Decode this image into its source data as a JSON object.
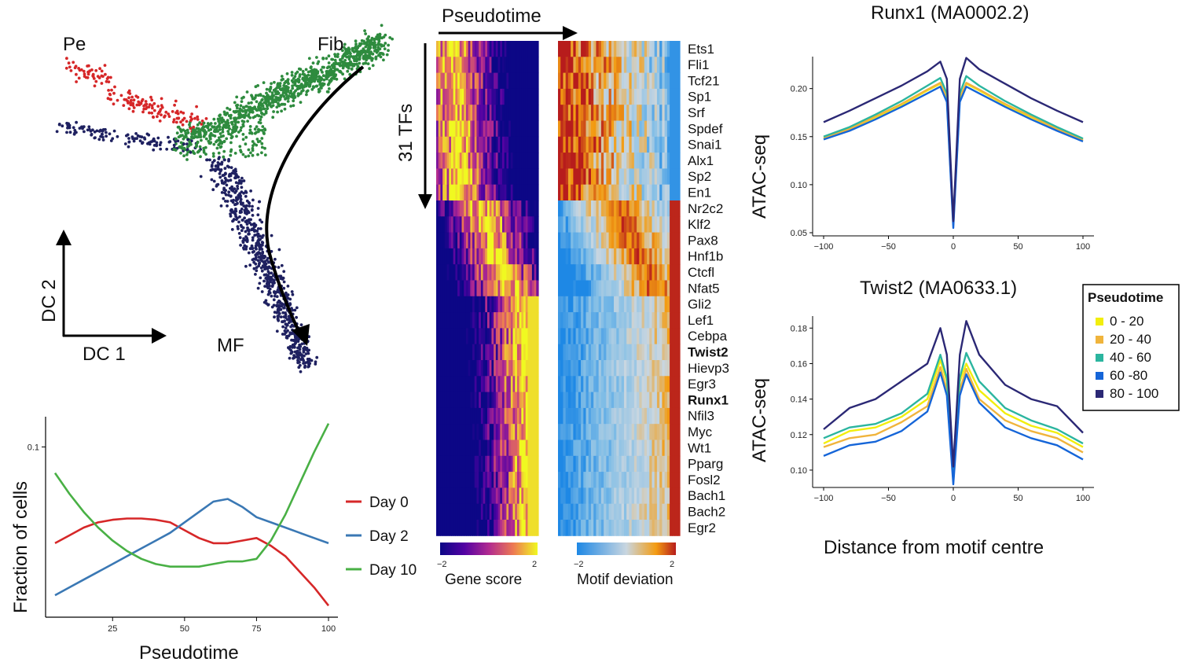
{
  "scatter_panel": {
    "labels": {
      "pe": "Pe",
      "fib": "Fib",
      "mf": "MF",
      "dc1": "DC 1",
      "dc2": "DC 2"
    },
    "colors": {
      "pe": "#d62728",
      "fib": "#2e8b3e",
      "mf": "#1f2160",
      "arrow": "#000000"
    }
  },
  "density_panel": {
    "xlabel": "Pseudotime",
    "ylabel": "Fraction of cells",
    "ytick": "0.1",
    "xticks": [
      25,
      50,
      75,
      100
    ],
    "legend": [
      "Day 0",
      "Day 2",
      "Day 10"
    ],
    "colors": [
      "#d62728",
      "#3a78b4",
      "#49b045"
    ]
  },
  "heatmap_panel": {
    "pseudotime_label": "Pseudotime",
    "tfs_label": "31 TFs",
    "tfs": [
      "Ets1",
      "Fli1",
      "Tcf21",
      "Sp1",
      "Srf",
      "Spdef",
      "Snai1",
      "Alx1",
      "Sp2",
      "En1",
      "Nr2c2",
      "Klf2",
      "Pax8",
      "Hnf1b",
      "Ctcfl",
      "Nfat5",
      "Gli2",
      "Lef1",
      "Cebpa",
      "Twist2",
      "Hievp3",
      "Egr3",
      "Runx1",
      "Nfil3",
      "Myc",
      "Wt1",
      "Pparg",
      "Fosl2",
      "Bach1",
      "Bach2",
      "Egr2"
    ],
    "bold_tfs": [
      "Twist2",
      "Runx1"
    ],
    "gene_score_label": "Gene score",
    "motif_deviation_label": "Motif deviation",
    "scale_min": "−2",
    "scale_max": "2"
  },
  "chart_data": [
    {
      "type": "scatter",
      "xlabel": "DC 1",
      "ylabel": "DC 2",
      "series": [
        {
          "name": "Pe",
          "values": []
        },
        {
          "name": "Fib",
          "values": []
        },
        {
          "name": "MF",
          "values": []
        }
      ]
    },
    {
      "type": "line",
      "xlabel": "Pseudotime",
      "ylabel": "Fraction of cells",
      "xlim": [
        5,
        100
      ],
      "ylim": [
        0.04,
        0.108
      ],
      "x": [
        5,
        10,
        15,
        20,
        25,
        30,
        35,
        40,
        45,
        50,
        55,
        60,
        65,
        70,
        75,
        80,
        85,
        90,
        95,
        100
      ],
      "series": [
        {
          "name": "Day 0",
          "values": [
            0.063,
            0.066,
            0.069,
            0.071,
            0.072,
            0.0725,
            0.0725,
            0.072,
            0.071,
            0.068,
            0.065,
            0.063,
            0.063,
            0.064,
            0.065,
            0.062,
            0.058,
            0.052,
            0.046,
            0.039
          ]
        },
        {
          "name": "Day 2",
          "values": [
            0.043,
            0.046,
            0.049,
            0.052,
            0.055,
            0.058,
            0.061,
            0.064,
            0.067,
            0.071,
            0.075,
            0.079,
            0.08,
            0.077,
            0.073,
            0.071,
            0.069,
            0.067,
            0.065,
            0.063
          ]
        },
        {
          "name": "Day 10",
          "values": [
            0.09,
            0.082,
            0.075,
            0.069,
            0.064,
            0.06,
            0.057,
            0.055,
            0.054,
            0.054,
            0.054,
            0.055,
            0.056,
            0.056,
            0.057,
            0.064,
            0.074,
            0.086,
            0.098,
            0.109
          ]
        }
      ]
    },
    {
      "type": "heatmap",
      "title": "Gene score",
      "rows": 31,
      "scale": [
        -2,
        2
      ]
    },
    {
      "type": "heatmap",
      "title": "Motif deviation",
      "rows": 31,
      "scale": [
        -2,
        2
      ]
    },
    {
      "type": "line",
      "title": "Runx1 (MA0002.2)",
      "ylabel": "ATAC-seq",
      "xlim": [
        -100,
        100
      ],
      "ylim": [
        0.05,
        0.23
      ],
      "xticks": [
        -100,
        -50,
        0,
        50,
        100
      ],
      "yticks": [
        "0.05",
        "0.10",
        "0.15",
        "0.20"
      ],
      "x": [
        -100,
        -80,
        -60,
        -40,
        -20,
        -10,
        -5,
        0,
        5,
        10,
        20,
        40,
        60,
        80,
        100
      ],
      "series": [
        {
          "name": "0 - 20",
          "values": [
            0.148,
            0.158,
            0.17,
            0.183,
            0.198,
            0.205,
            0.19,
            0.06,
            0.19,
            0.205,
            0.198,
            0.183,
            0.17,
            0.158,
            0.146
          ]
        },
        {
          "name": "20 - 40",
          "values": [
            0.149,
            0.158,
            0.171,
            0.184,
            0.199,
            0.206,
            0.19,
            0.058,
            0.19,
            0.206,
            0.199,
            0.184,
            0.171,
            0.158,
            0.147
          ]
        },
        {
          "name": "40 - 60",
          "values": [
            0.15,
            0.16,
            0.173,
            0.187,
            0.203,
            0.211,
            0.195,
            0.062,
            0.195,
            0.213,
            0.203,
            0.187,
            0.173,
            0.16,
            0.148
          ]
        },
        {
          "name": "60 -80",
          "values": [
            0.147,
            0.156,
            0.168,
            0.181,
            0.195,
            0.202,
            0.186,
            0.055,
            0.186,
            0.202,
            0.195,
            0.181,
            0.168,
            0.156,
            0.145
          ]
        },
        {
          "name": "80 - 100",
          "values": [
            0.165,
            0.177,
            0.19,
            0.203,
            0.218,
            0.228,
            0.21,
            0.062,
            0.21,
            0.232,
            0.22,
            0.205,
            0.19,
            0.177,
            0.165
          ]
        }
      ]
    },
    {
      "type": "line",
      "title": "Twist2 (MA0633.1)",
      "ylabel": "ATAC-seq",
      "xlabel": "Distance from motif centre",
      "xlim": [
        -100,
        100
      ],
      "ylim": [
        0.092,
        0.185
      ],
      "xticks": [
        -100,
        -50,
        0,
        50,
        100
      ],
      "yticks": [
        "0.10",
        "0.12",
        "0.14",
        "0.16",
        "0.18"
      ],
      "x": [
        -100,
        -80,
        -60,
        -40,
        -20,
        -10,
        -5,
        0,
        5,
        10,
        20,
        40,
        60,
        80,
        100
      ],
      "series": [
        {
          "name": "0 - 20",
          "values": [
            0.115,
            0.122,
            0.124,
            0.13,
            0.14,
            0.162,
            0.15,
            0.098,
            0.15,
            0.16,
            0.145,
            0.132,
            0.125,
            0.121,
            0.113
          ]
        },
        {
          "name": "20 - 40",
          "values": [
            0.113,
            0.118,
            0.12,
            0.127,
            0.136,
            0.158,
            0.145,
            0.095,
            0.145,
            0.157,
            0.14,
            0.128,
            0.122,
            0.118,
            0.11
          ]
        },
        {
          "name": "40 - 60",
          "values": [
            0.118,
            0.124,
            0.126,
            0.132,
            0.143,
            0.165,
            0.152,
            0.1,
            0.152,
            0.166,
            0.15,
            0.135,
            0.128,
            0.123,
            0.115
          ]
        },
        {
          "name": "60 -80",
          "values": [
            0.108,
            0.114,
            0.116,
            0.122,
            0.133,
            0.155,
            0.142,
            0.092,
            0.142,
            0.154,
            0.138,
            0.124,
            0.118,
            0.114,
            0.106
          ]
        },
        {
          "name": "80 - 100",
          "values": [
            0.123,
            0.135,
            0.14,
            0.15,
            0.16,
            0.18,
            0.165,
            0.102,
            0.165,
            0.184,
            0.165,
            0.148,
            0.14,
            0.136,
            0.121
          ]
        }
      ],
      "legend": {
        "title": "Pseudotime",
        "placement": "right"
      }
    }
  ],
  "legend_colors": [
    "#f2ee0c",
    "#f0b43c",
    "#2bb59f",
    "#1565d8",
    "#2b2875"
  ]
}
